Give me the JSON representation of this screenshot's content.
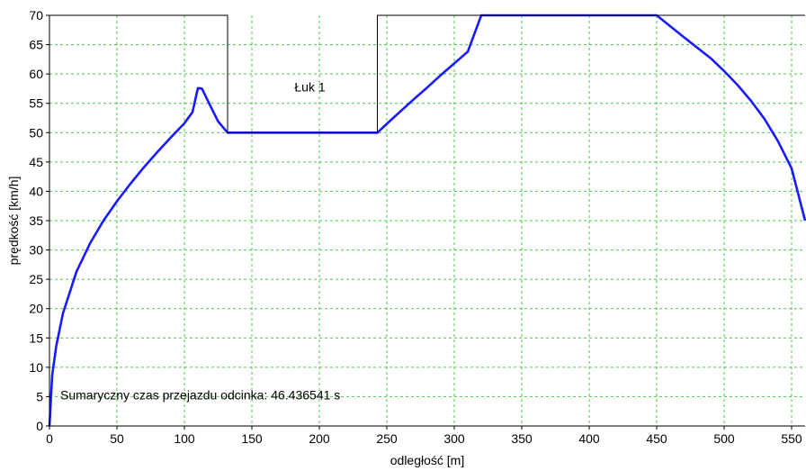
{
  "chart_data": {
    "type": "line",
    "xlabel": "odległość [m]",
    "ylabel": "prędkość [km/h]",
    "xlim": [
      0,
      560
    ],
    "ylim": [
      0,
      70
    ],
    "x_ticks": [
      0,
      50,
      100,
      150,
      200,
      250,
      300,
      350,
      400,
      450,
      500,
      550
    ],
    "y_ticks": [
      0,
      5,
      10,
      15,
      20,
      25,
      30,
      35,
      40,
      45,
      50,
      55,
      60,
      65,
      70
    ],
    "grid": true,
    "series": [
      {
        "color": "#1a1aff",
        "x": [
          0,
          2,
          5,
          10,
          20,
          30,
          40,
          50,
          60,
          70,
          80,
          90,
          100,
          106,
          110,
          113,
          120,
          125,
          132,
          150,
          200,
          243,
          250,
          260,
          270,
          280,
          290,
          300,
          310,
          320,
          350,
          400,
          450,
          470,
          490,
          500,
          510,
          520,
          530,
          540,
          550,
          560
        ],
        "y": [
          0,
          8.6,
          13.6,
          19.2,
          26.3,
          31.1,
          35.0,
          38.3,
          41.3,
          44.1,
          46.7,
          49.2,
          51.6,
          53.5,
          57.6,
          57.5,
          54.2,
          51.9,
          50,
          50,
          50,
          50,
          51.5,
          53.6,
          55.7,
          57.7,
          59.8,
          61.8,
          63.8,
          70,
          70,
          70,
          70,
          66.3,
          62.7,
          60.5,
          58.1,
          55.4,
          52.3,
          48.5,
          43.9,
          35.0
        ]
      },
      {
        "color": "#000000",
        "x": [
          0,
          132,
          132,
          243,
          243,
          560
        ],
        "y": [
          70,
          70,
          50,
          50,
          70,
          70
        ]
      }
    ],
    "annotations": [
      {
        "text": "Łuk 1",
        "x": 193,
        "y": 57
      },
      {
        "text": "Sumaryczny czas przejazdu odcinka: 46.436541 s",
        "x": 8,
        "y": 4.5
      }
    ]
  }
}
